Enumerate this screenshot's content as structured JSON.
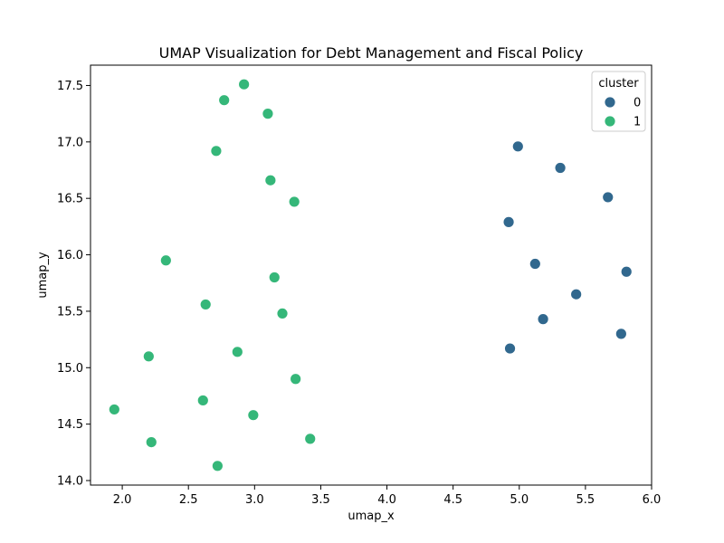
{
  "chart_data": {
    "type": "scatter",
    "title": "UMAP Visualization for Debt Management and Fiscal Policy",
    "xlabel": "umap_x",
    "ylabel": "umap_y",
    "xlim": [
      1.76,
      6.0
    ],
    "ylim": [
      13.96,
      17.68
    ],
    "xticks": [
      2.0,
      2.5,
      3.0,
      3.5,
      4.0,
      4.5,
      5.0,
      5.5,
      6.0
    ],
    "xtick_labels": [
      "2.0",
      "2.5",
      "3.0",
      "3.5",
      "4.0",
      "4.5",
      "5.0",
      "5.5",
      "6.0"
    ],
    "yticks": [
      14.0,
      14.5,
      15.0,
      15.5,
      16.0,
      16.5,
      17.0,
      17.5
    ],
    "ytick_labels": [
      "14.0",
      "14.5",
      "15.0",
      "15.5",
      "16.0",
      "16.5",
      "17.0",
      "17.5"
    ],
    "grid": false,
    "legend": {
      "title": "cluster",
      "placement": "top-right",
      "entries": [
        {
          "label": "0",
          "color": "#31688e"
        },
        {
          "label": "1",
          "color": "#35b779"
        }
      ]
    },
    "series": [
      {
        "name": "0",
        "color": "#31688e",
        "points": [
          {
            "x": 4.99,
            "y": 16.96
          },
          {
            "x": 5.31,
            "y": 16.77
          },
          {
            "x": 5.67,
            "y": 16.51
          },
          {
            "x": 4.92,
            "y": 16.29
          },
          {
            "x": 5.12,
            "y": 15.92
          },
          {
            "x": 5.81,
            "y": 15.85
          },
          {
            "x": 5.43,
            "y": 15.65
          },
          {
            "x": 5.18,
            "y": 15.43
          },
          {
            "x": 5.77,
            "y": 15.3
          },
          {
            "x": 4.93,
            "y": 15.17
          }
        ]
      },
      {
        "name": "1",
        "color": "#35b779",
        "points": [
          {
            "x": 2.92,
            "y": 17.51
          },
          {
            "x": 2.77,
            "y": 17.37
          },
          {
            "x": 3.1,
            "y": 17.25
          },
          {
            "x": 2.71,
            "y": 16.92
          },
          {
            "x": 3.12,
            "y": 16.66
          },
          {
            "x": 3.3,
            "y": 16.47
          },
          {
            "x": 2.33,
            "y": 15.95
          },
          {
            "x": 3.15,
            "y": 15.8
          },
          {
            "x": 2.63,
            "y": 15.56
          },
          {
            "x": 3.21,
            "y": 15.48
          },
          {
            "x": 2.87,
            "y": 15.14
          },
          {
            "x": 2.2,
            "y": 15.1
          },
          {
            "x": 3.31,
            "y": 14.9
          },
          {
            "x": 2.61,
            "y": 14.71
          },
          {
            "x": 2.99,
            "y": 14.58
          },
          {
            "x": 1.94,
            "y": 14.63
          },
          {
            "x": 3.42,
            "y": 14.37
          },
          {
            "x": 2.22,
            "y": 14.34
          },
          {
            "x": 2.72,
            "y": 14.13
          }
        ]
      }
    ]
  }
}
